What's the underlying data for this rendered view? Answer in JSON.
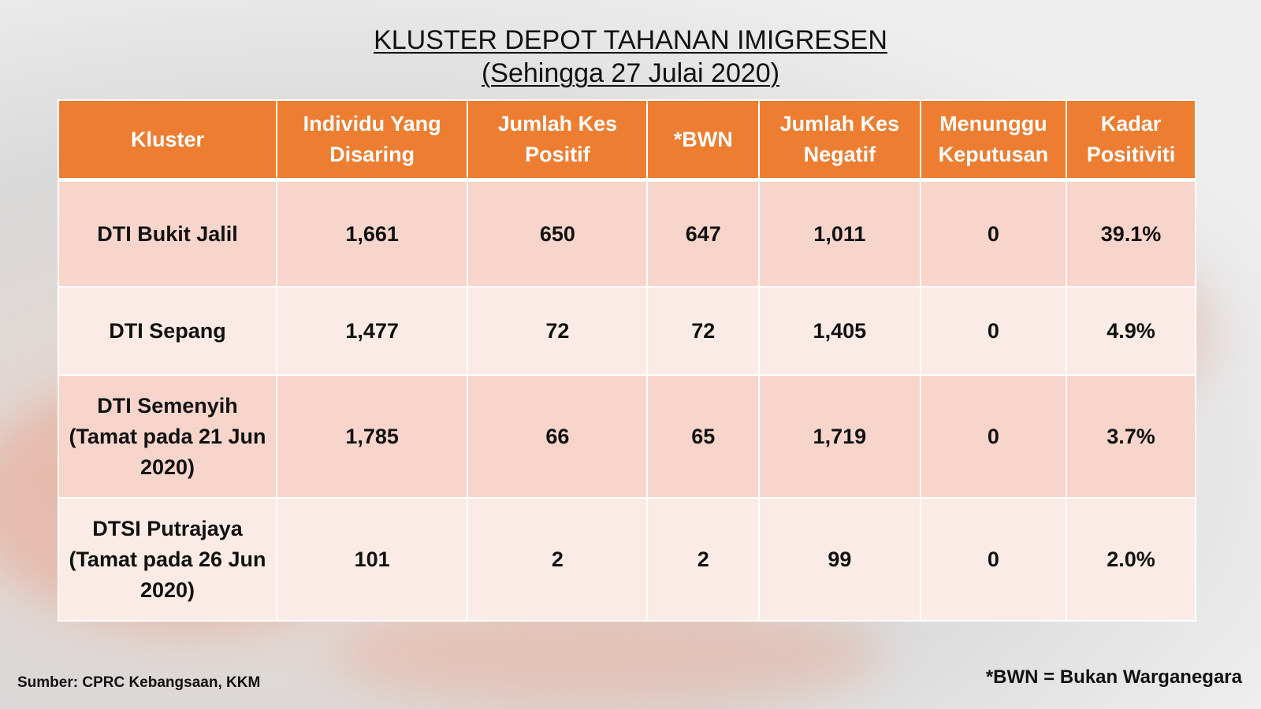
{
  "title_line1": "KLUSTER DEPOT TAHANAN IMIGRESEN",
  "title_line2": "(Sehingga 27 Julai 2020)",
  "chart_data": {
    "type": "table",
    "headers": [
      "Kluster",
      "Individu Yang Disaring",
      "Jumlah Kes Positif",
      "*BWN",
      "Jumlah Kes Negatif",
      "Menunggu Keputusan",
      "Kadar Positiviti"
    ],
    "rows": [
      [
        "DTI Bukit Jalil",
        "1,661",
        "650",
        "647",
        "1,011",
        "0",
        "39.1%"
      ],
      [
        "DTI Sepang",
        "1,477",
        "72",
        "72",
        "1,405",
        "0",
        "4.9%"
      ],
      [
        "DTI Semenyih (Tamat pada 21 Jun 2020)",
        "1,785",
        "66",
        "65",
        "1,719",
        "0",
        "3.7%"
      ],
      [
        "DTSI Putrajaya (Tamat pada 26 Jun 2020)",
        "101",
        "2",
        "2",
        "99",
        "0",
        "2.0%"
      ]
    ]
  },
  "source": "Sumber: CPRC Kebangsaan, KKM",
  "footnote": "*BWN = Bukan Warganegara",
  "colors": {
    "header_bg": "#ed7d31",
    "row_dark": "#f7d5cb",
    "row_light": "#fbebe6"
  }
}
